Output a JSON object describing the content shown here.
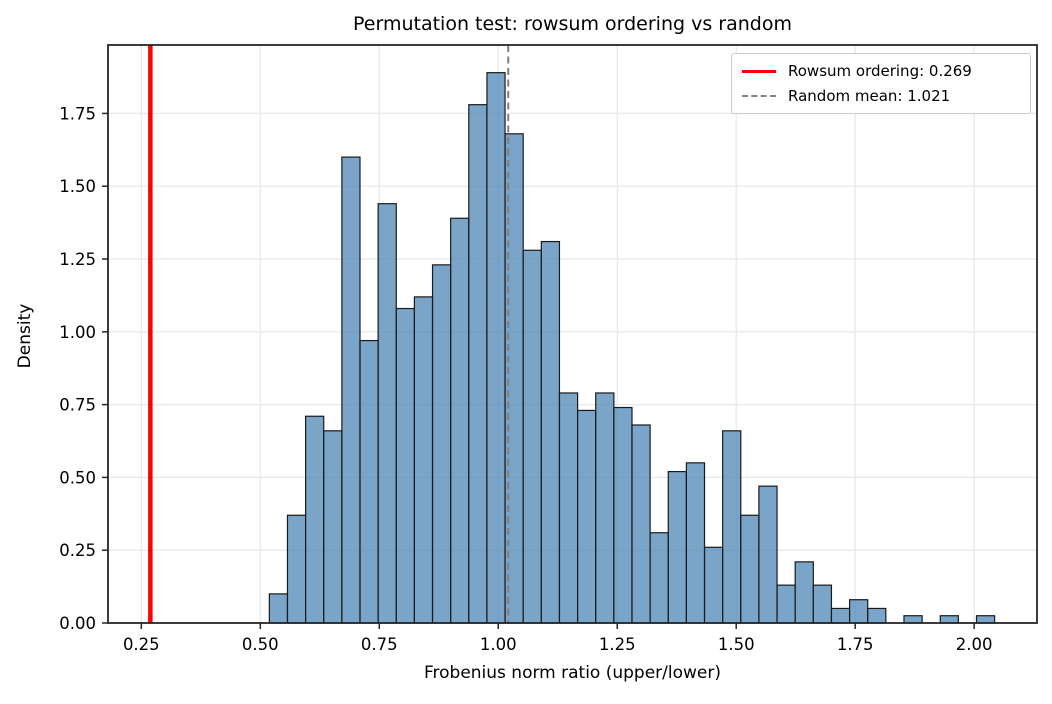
{
  "title": "Permutation test: rowsum ordering vs random",
  "chart_data": {
    "type": "bar",
    "subtype": "histogram-density",
    "title": "Permutation test: rowsum ordering vs random",
    "xlabel": "Frobenius norm ratio (upper/lower)",
    "ylabel": "Density",
    "xlim": [
      0.18,
      2.132
    ],
    "ylim": [
      0,
      1.985
    ],
    "grid": true,
    "legend_position": "upper right",
    "bin_start": 0.519,
    "bin_width": 0.0381,
    "densities": [
      0.1,
      0.37,
      0.71,
      0.66,
      1.6,
      0.97,
      1.44,
      1.08,
      1.12,
      1.23,
      1.39,
      1.78,
      1.89,
      1.68,
      1.28,
      1.31,
      0.79,
      0.73,
      0.79,
      0.74,
      0.68,
      0.31,
      0.52,
      0.55,
      0.26,
      0.66,
      0.37,
      0.47,
      0.13,
      0.21,
      0.13,
      0.05,
      0.08,
      0.05,
      0.0,
      0.025,
      0.0,
      0.025,
      0.0,
      0.025
    ],
    "xtick_values": [
      0.25,
      0.5,
      0.75,
      1.0,
      1.25,
      1.5,
      1.75,
      2.0
    ],
    "xtick_labels": [
      "0.25",
      "0.50",
      "0.75",
      "1.00",
      "1.25",
      "1.50",
      "1.75",
      "2.00"
    ],
    "ytick_values": [
      0.0,
      0.25,
      0.5,
      0.75,
      1.0,
      1.25,
      1.5,
      1.75
    ],
    "ytick_labels": [
      "0.00",
      "0.25",
      "0.50",
      "0.75",
      "1.00",
      "1.25",
      "1.50",
      "1.75"
    ],
    "vlines": [
      {
        "name": "rowsum-ordering",
        "x": 0.269,
        "style": "solid",
        "color": "#ff0000",
        "width": 4.5
      },
      {
        "name": "random-mean",
        "x": 1.021,
        "style": "dashed",
        "color": "#7f7f7f",
        "width": 2
      }
    ],
    "legend": {
      "entries": [
        {
          "label": "Rowsum ordering: 0.269",
          "swatch": "red-solid-line"
        },
        {
          "label": "Random mean: 1.021",
          "swatch": "gray-dashed-line"
        }
      ]
    }
  },
  "colors": {
    "bar_fill": "rgba(70,130,180,0.72)",
    "bar_edge": "#1a1a1a",
    "grid": "#e8e8e8",
    "spine": "#262626",
    "red_line": "#ff0000",
    "dashed_line": "#7f7f7f",
    "background": "#ffffff"
  }
}
